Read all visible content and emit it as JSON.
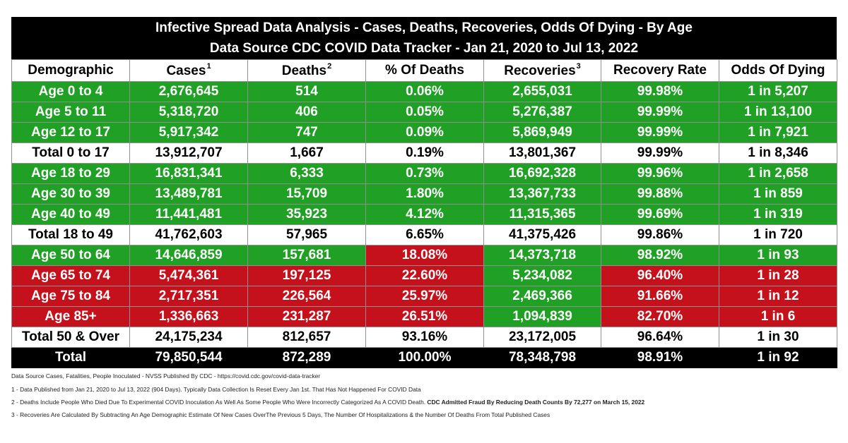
{
  "title_line1": "Infective Spread Data Analysis - Cases, Deaths, Recoveries, Odds Of Dying - By Age",
  "title_line2": "Data Source CDC COVID Data Tracker - Jan 21, 2020 to Jul 13, 2022",
  "headers": [
    {
      "label": "Demographic",
      "sup": ""
    },
    {
      "label": "Cases",
      "sup": "1"
    },
    {
      "label": "Deaths",
      "sup": "2"
    },
    {
      "label": "% Of Deaths",
      "sup": ""
    },
    {
      "label": "Recoveries",
      "sup": "3"
    },
    {
      "label": "Recovery Rate",
      "sup": ""
    },
    {
      "label": "Odds Of Dying",
      "sup": ""
    }
  ],
  "rows": [
    {
      "style": "green",
      "red_cols": [],
      "cells": [
        "Age 0 to 4",
        "2,676,645",
        "514",
        "0.06%",
        "2,655,031",
        "99.98%",
        "1 in 5,207"
      ]
    },
    {
      "style": "green",
      "red_cols": [],
      "cells": [
        "Age 5 to 11",
        "5,318,720",
        "406",
        "0.05%",
        "5,276,387",
        "99.99%",
        "1 in 13,100"
      ]
    },
    {
      "style": "green",
      "red_cols": [],
      "cells": [
        "Age 12 to 17",
        "5,917,342",
        "747",
        "0.09%",
        "5,869,949",
        "99.99%",
        "1 in 7,921"
      ]
    },
    {
      "style": "white",
      "red_cols": [],
      "cells": [
        "Total 0 to 17",
        "13,912,707",
        "1,667",
        "0.19%",
        "13,801,367",
        "99.99%",
        "1 in 8,346"
      ]
    },
    {
      "style": "green",
      "red_cols": [],
      "cells": [
        "Age 18 to 29",
        "16,831,341",
        "6,333",
        "0.73%",
        "16,692,328",
        "99.96%",
        "1 in 2,658"
      ]
    },
    {
      "style": "green",
      "red_cols": [],
      "cells": [
        "Age 30 to 39",
        "13,489,781",
        "15,709",
        "1.80%",
        "13,367,733",
        "99.88%",
        "1 in 859"
      ]
    },
    {
      "style": "green",
      "red_cols": [],
      "cells": [
        "Age 40 to 49",
        "11,441,481",
        "35,923",
        "4.12%",
        "11,315,365",
        "99.69%",
        "1 in 319"
      ]
    },
    {
      "style": "white",
      "red_cols": [],
      "cells": [
        "Total 18 to 49",
        "41,762,603",
        "57,965",
        "6.65%",
        "41,375,426",
        "99.86%",
        "1 in 720"
      ]
    },
    {
      "style": "green",
      "red_cols": [
        3
      ],
      "cells": [
        "Age 50 to 64",
        "14,646,859",
        "157,681",
        "18.08%",
        "14,373,718",
        "98.92%",
        "1 in 93"
      ]
    },
    {
      "style": "red",
      "green_cols": [
        4
      ],
      "cells": [
        "Age 65 to 74",
        "5,474,361",
        "197,125",
        "22.60%",
        "5,234,082",
        "96.40%",
        "1 in 28"
      ]
    },
    {
      "style": "red",
      "green_cols": [
        4
      ],
      "cells": [
        "Age 75 to 84",
        "2,717,351",
        "226,564",
        "25.97%",
        "2,469,366",
        "91.66%",
        "1 in 12"
      ]
    },
    {
      "style": "red",
      "green_cols": [
        4
      ],
      "cells": [
        "Age 85+",
        "1,336,663",
        "231,287",
        "26.51%",
        "1,094,839",
        "82.70%",
        "1 in 6"
      ]
    },
    {
      "style": "white",
      "red_cols": [],
      "cells": [
        "Total 50 & Over",
        "24,175,234",
        "812,657",
        "93.16%",
        "23,172,005",
        "96.64%",
        "1 in 30"
      ]
    },
    {
      "style": "black",
      "red_cols": [],
      "cells": [
        "Total",
        "79,850,544",
        "872,289",
        "100.00%",
        "78,348,798",
        "98.91%",
        "1 in 92"
      ]
    }
  ],
  "notes": {
    "source": "Data Source Cases, Fatalities, People Inoculated - NVSS Published By CDC - https://covid.cdc.gov/covid-data-tracker",
    "note1": "1 - Data Published from Jan 21, 2020 to Jul 13, 2022 (904 Days). Typically Data Collection Is Reset Every Jan 1st. That Has Not Happened For COVID Data",
    "note2": "2 - Deaths Include People Who Died Due To Experimental COVID Inoculation As Well As Some People Who Were Incorrectly Categorized As A COVID Death.",
    "note2_bold": "CDC Admitted Fraud By Reducing Death Counts By 72,277 on March 15, 2022",
    "note3": "3 - Recoveries Are Calculated By Subtracting An Age Demographic Estimate Of New Cases OverThe Previous 5 Days, The Number Of Hospitalizations & the Number Of Deaths From Total Published Cases"
  },
  "colors": {
    "green": "#21a026",
    "red": "#c4111b",
    "black": "#000000"
  }
}
